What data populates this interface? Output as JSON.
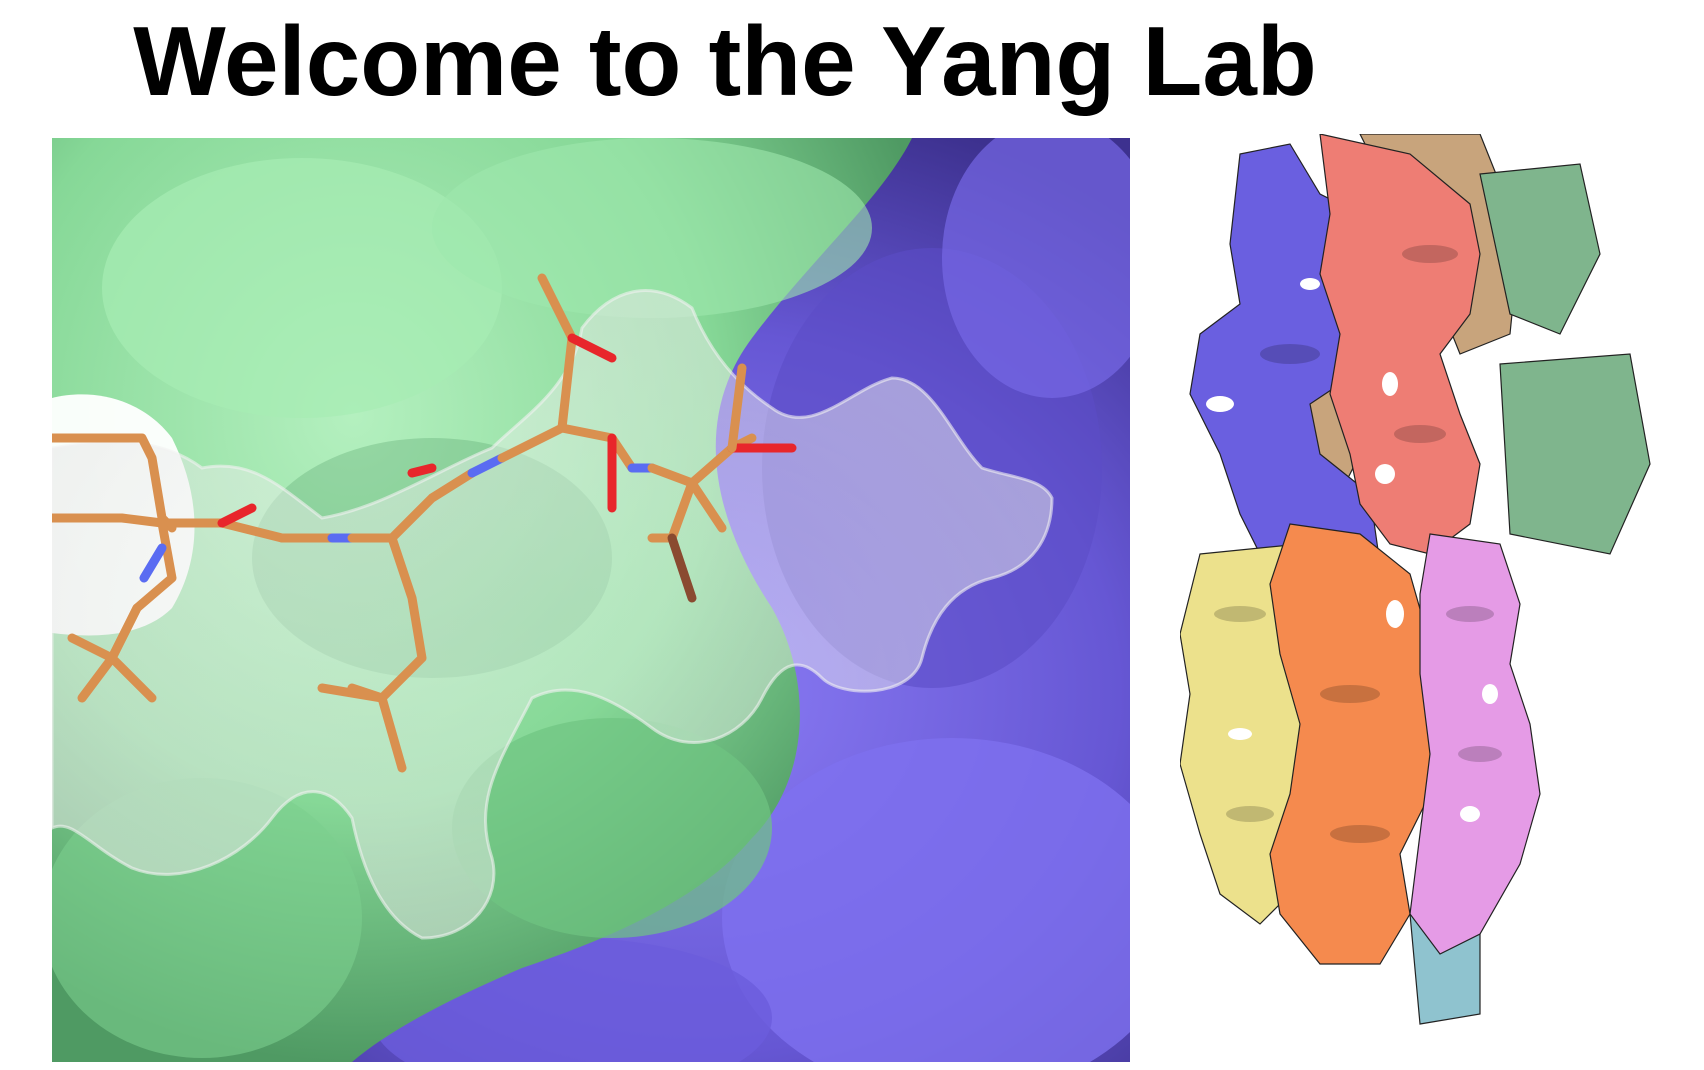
{
  "header": {
    "title": "Welcome to the Yang Lab"
  },
  "figures": {
    "surface_view": {
      "colors": {
        "green_surface": "#8fe0a0",
        "purple_surface": "#6c5fd8",
        "ligand": "#d9904f",
        "oxygen": "#e8262b",
        "nitrogen": "#5a6cf2",
        "density": "#dcdcdc"
      }
    },
    "density_map": {
      "colors": [
        "#6a5fe0",
        "#ee7d74",
        "#c8a47c",
        "#7fb58d",
        "#ece18c",
        "#f58a4e",
        "#e59be6",
        "#8fc3cf"
      ]
    }
  }
}
